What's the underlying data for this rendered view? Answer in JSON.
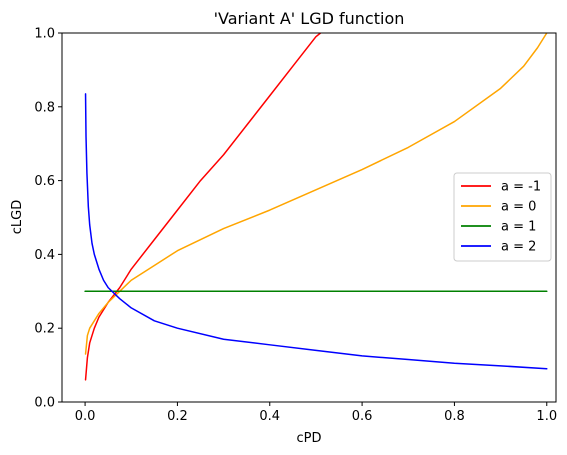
{
  "chart_data": {
    "type": "line",
    "title": "'Variant A' LGD function",
    "xlabel": "cPD",
    "ylabel": "cLGD",
    "xlim": [
      -0.05,
      1.02
    ],
    "ylim": [
      0.0,
      1.0
    ],
    "xticks": [
      "0.0",
      "0.2",
      "0.4",
      "0.6",
      "0.8",
      "1.0"
    ],
    "yticks": [
      "0.0",
      "0.2",
      "0.4",
      "0.6",
      "0.8",
      "1.0"
    ],
    "grid": false,
    "legend_position": "center-right",
    "series": [
      {
        "name": "a = -1",
        "color": "#ff0000",
        "x": [
          0.001,
          0.005,
          0.01,
          0.02,
          0.03,
          0.05,
          0.075,
          0.1,
          0.15,
          0.2,
          0.25,
          0.3,
          0.35,
          0.4,
          0.45,
          0.5,
          0.51
        ],
        "y": [
          0.06,
          0.12,
          0.16,
          0.2,
          0.23,
          0.27,
          0.31,
          0.36,
          0.44,
          0.52,
          0.6,
          0.67,
          0.75,
          0.83,
          0.91,
          0.99,
          1.0
        ]
      },
      {
        "name": "a = 0",
        "color": "#ffa500",
        "x": [
          0.001,
          0.005,
          0.01,
          0.02,
          0.03,
          0.05,
          0.075,
          0.1,
          0.15,
          0.2,
          0.3,
          0.4,
          0.5,
          0.6,
          0.7,
          0.8,
          0.9,
          0.95,
          0.98,
          1.0
        ],
        "y": [
          0.13,
          0.18,
          0.2,
          0.22,
          0.24,
          0.27,
          0.3,
          0.33,
          0.37,
          0.41,
          0.47,
          0.52,
          0.575,
          0.63,
          0.69,
          0.76,
          0.85,
          0.91,
          0.96,
          1.0
        ]
      },
      {
        "name": "a = 1",
        "color": "#008000",
        "x": [
          0.0,
          1.0
        ],
        "y": [
          0.3,
          0.3
        ]
      },
      {
        "name": "a = 2",
        "color": "#0000ff",
        "x": [
          0.001,
          0.002,
          0.004,
          0.007,
          0.01,
          0.015,
          0.02,
          0.03,
          0.04,
          0.05,
          0.075,
          0.1,
          0.15,
          0.2,
          0.3,
          0.4,
          0.5,
          0.6,
          0.7,
          0.8,
          0.9,
          1.0
        ],
        "y": [
          0.835,
          0.72,
          0.62,
          0.53,
          0.48,
          0.43,
          0.4,
          0.36,
          0.33,
          0.31,
          0.28,
          0.255,
          0.22,
          0.2,
          0.17,
          0.155,
          0.14,
          0.125,
          0.115,
          0.105,
          0.098,
          0.09
        ]
      }
    ]
  }
}
